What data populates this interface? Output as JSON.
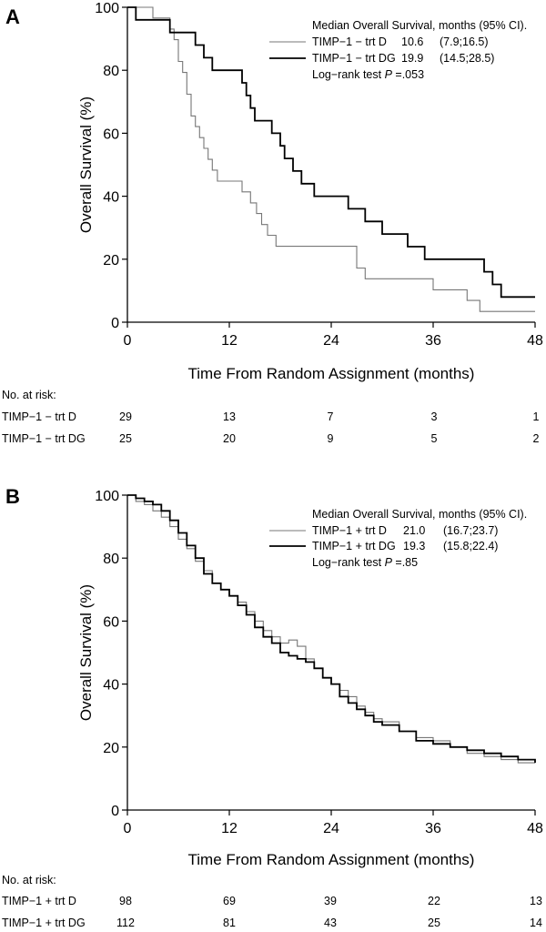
{
  "panels": [
    {
      "label": "A",
      "legend": {
        "header": "Median Overall Survival, months (95% CI).",
        "entries": [
          {
            "name": "TIMP−1 − trt D",
            "median": "10.6",
            "ci": "(7.9;16.5)"
          },
          {
            "name": "TIMP−1 − trt DG",
            "median": "19.9",
            "ci": "(14.5;28.5)"
          }
        ],
        "logrank_text": "Log−rank test ",
        "p_label": "P",
        "p_value": " =.053"
      },
      "risk": {
        "title": "No. at risk:",
        "rows": [
          {
            "label": "TIMP−1 − trt D",
            "values": [
              "29",
              "13",
              "7",
              "3",
              "1"
            ]
          },
          {
            "label": "TIMP−1 − trt DG",
            "values": [
              "25",
              "20",
              "9",
              "5",
              "2"
            ]
          }
        ]
      }
    },
    {
      "label": "B",
      "legend": {
        "header": "Median Overall Survival, months (95% CI).",
        "entries": [
          {
            "name": "TIMP−1 + trt D",
            "median": "21.0",
            "ci": "(16.7;23.7)"
          },
          {
            "name": "TIMP−1 + trt DG",
            "median": "19.3",
            "ci": "(15.8;22.4)"
          }
        ],
        "logrank_text": "Log−rank test ",
        "p_label": "P",
        "p_value": " =.85"
      },
      "risk": {
        "title": "No. at risk:",
        "rows": [
          {
            "label": "TIMP−1 + trt D",
            "values": [
              "98",
              "69",
              "39",
              "22",
              "13"
            ]
          },
          {
            "label": "TIMP−1 + trt DG",
            "values": [
              "112",
              "81",
              "43",
              "25",
              "14"
            ]
          }
        ]
      }
    }
  ],
  "chart_data": [
    {
      "type": "line",
      "step": true,
      "xlabel": "Time From Random Assignment (months)",
      "ylabel": "Overall Survival (%)",
      "xlim": [
        0,
        48
      ],
      "ylim": [
        0,
        100
      ],
      "xticks": [
        0,
        12,
        24,
        36,
        48
      ],
      "yticks": [
        0,
        20,
        40,
        60,
        80,
        100
      ],
      "grid": false,
      "legend_position": "top-right",
      "series": [
        {
          "name": "TIMP−1 − trt D",
          "color": "#777777",
          "points": [
            [
              0,
              100
            ],
            [
              3,
              96.6
            ],
            [
              5,
              93.1
            ],
            [
              5.5,
              89.7
            ],
            [
              6,
              82.8
            ],
            [
              6.5,
              79.3
            ],
            [
              7,
              72.4
            ],
            [
              7.5,
              65.5
            ],
            [
              8,
              62.1
            ],
            [
              8.5,
              58.6
            ],
            [
              9,
              55.2
            ],
            [
              9.5,
              51.7
            ],
            [
              10,
              48.3
            ],
            [
              10.6,
              44.8
            ],
            [
              13.5,
              41.4
            ],
            [
              14.5,
              37.9
            ],
            [
              15.2,
              34.5
            ],
            [
              15.8,
              31
            ],
            [
              16.5,
              27.6
            ],
            [
              17.5,
              24.1
            ],
            [
              23,
              24.1
            ],
            [
              27,
              17.2
            ],
            [
              28,
              13.8
            ],
            [
              36,
              10.3
            ],
            [
              40,
              6.9
            ],
            [
              41.5,
              3.4
            ],
            [
              48,
              3.4
            ]
          ]
        },
        {
          "name": "TIMP−1 − trt DG",
          "color": "#000000",
          "points": [
            [
              0,
              100
            ],
            [
              1,
              96
            ],
            [
              5,
              92
            ],
            [
              8,
              88
            ],
            [
              9,
              84
            ],
            [
              10,
              80
            ],
            [
              13.5,
              76
            ],
            [
              14,
              72
            ],
            [
              14.5,
              68
            ],
            [
              15,
              64
            ],
            [
              17,
              60
            ],
            [
              18,
              56
            ],
            [
              18.5,
              52
            ],
            [
              19.5,
              48
            ],
            [
              20.5,
              44
            ],
            [
              22,
              40
            ],
            [
              24,
              40
            ],
            [
              26,
              36
            ],
            [
              28,
              32
            ],
            [
              30,
              28
            ],
            [
              33,
              24
            ],
            [
              35,
              20
            ],
            [
              42,
              16
            ],
            [
              43,
              12
            ],
            [
              44,
              8
            ],
            [
              48,
              8
            ]
          ]
        }
      ]
    },
    {
      "type": "line",
      "step": true,
      "xlabel": "Time From Random Assignment (months)",
      "ylabel": "Overall Survival (%)",
      "xlim": [
        0,
        48
      ],
      "ylim": [
        0,
        100
      ],
      "xticks": [
        0,
        12,
        24,
        36,
        48
      ],
      "yticks": [
        0,
        20,
        40,
        60,
        80,
        100
      ],
      "grid": false,
      "legend_position": "top-right",
      "series": [
        {
          "name": "TIMP−1 + trt D",
          "color": "#777777",
          "points": [
            [
              0,
              100
            ],
            [
              1,
              98
            ],
            [
              2,
              97
            ],
            [
              3,
              95
            ],
            [
              4,
              93
            ],
            [
              5,
              90
            ],
            [
              6,
              86
            ],
            [
              7,
              83
            ],
            [
              8,
              79
            ],
            [
              9,
              76
            ],
            [
              10,
              72
            ],
            [
              11,
              70
            ],
            [
              12,
              68
            ],
            [
              13,
              66
            ],
            [
              14,
              63
            ],
            [
              15,
              60
            ],
            [
              16,
              57
            ],
            [
              17,
              55
            ],
            [
              18,
              53
            ],
            [
              19,
              54
            ],
            [
              20,
              52
            ],
            [
              21,
              48
            ],
            [
              22,
              45
            ],
            [
              23,
              42
            ],
            [
              24,
              40
            ],
            [
              25,
              38
            ],
            [
              26,
              36
            ],
            [
              27,
              33
            ],
            [
              28,
              31
            ],
            [
              29,
              29
            ],
            [
              30,
              28
            ],
            [
              32,
              25
            ],
            [
              34,
              23
            ],
            [
              36,
              22
            ],
            [
              38,
              20
            ],
            [
              40,
              18
            ],
            [
              42,
              17
            ],
            [
              44,
              16
            ],
            [
              46,
              15
            ],
            [
              48,
              15
            ]
          ]
        },
        {
          "name": "TIMP−1 + trt DG",
          "color": "#000000",
          "points": [
            [
              0,
              100
            ],
            [
              1,
              99
            ],
            [
              2,
              98
            ],
            [
              3,
              97
            ],
            [
              4,
              95
            ],
            [
              5,
              92
            ],
            [
              6,
              88
            ],
            [
              7,
              84
            ],
            [
              8,
              80
            ],
            [
              9,
              75
            ],
            [
              10,
              72
            ],
            [
              11,
              70
            ],
            [
              12,
              68
            ],
            [
              13,
              65
            ],
            [
              14,
              62
            ],
            [
              15,
              58
            ],
            [
              16,
              55
            ],
            [
              17,
              53
            ],
            [
              18,
              50
            ],
            [
              19,
              49
            ],
            [
              20,
              48
            ],
            [
              21,
              47
            ],
            [
              22,
              45
            ],
            [
              23,
              42
            ],
            [
              24,
              40
            ],
            [
              25,
              36
            ],
            [
              26,
              34
            ],
            [
              27,
              32
            ],
            [
              28,
              30
            ],
            [
              29,
              28
            ],
            [
              30,
              27
            ],
            [
              32,
              25
            ],
            [
              34,
              22
            ],
            [
              36,
              21
            ],
            [
              38,
              20
            ],
            [
              40,
              19
            ],
            [
              42,
              18
            ],
            [
              44,
              17
            ],
            [
              46,
              16
            ],
            [
              48,
              15
            ]
          ]
        }
      ]
    }
  ]
}
